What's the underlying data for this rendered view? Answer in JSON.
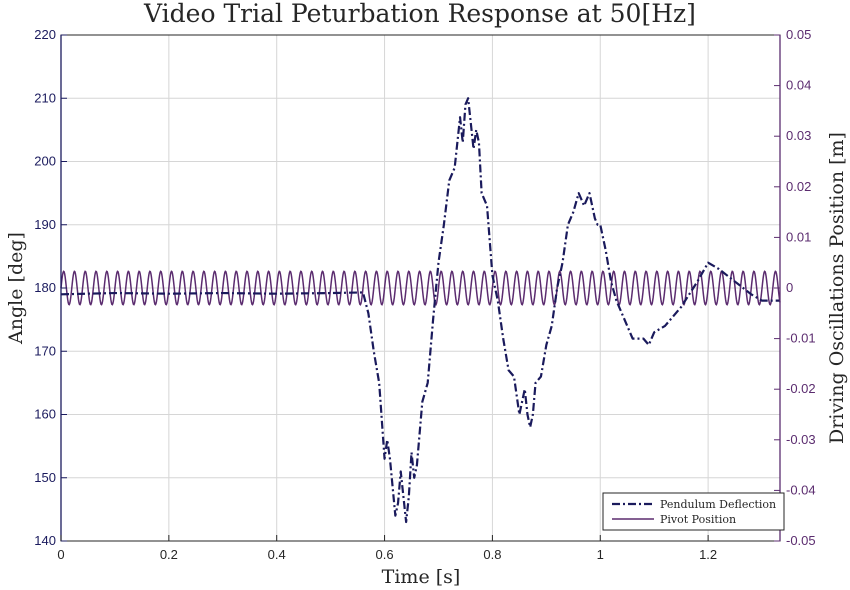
{
  "chart_data": {
    "type": "line",
    "title": "Video Trial Peturbation Response at 50[Hz]",
    "xlabel": "Time [s]",
    "ylabel": "Angle [deg]",
    "y2label": "Driving Oscillations Position [m]",
    "xlim": [
      0,
      1.3333
    ],
    "ylim": [
      140,
      220
    ],
    "y2lim": [
      -0.05,
      0.05
    ],
    "x_ticks": [
      "0",
      "0.2",
      "0.4",
      "0.6",
      "0.8",
      "1",
      "1.2"
    ],
    "x_tick_values": [
      0,
      0.2,
      0.4,
      0.6,
      0.8,
      1.0,
      1.2
    ],
    "y_ticks": [
      "140",
      "150",
      "160",
      "170",
      "180",
      "190",
      "200",
      "210",
      "220"
    ],
    "y_tick_values": [
      140,
      150,
      160,
      170,
      180,
      190,
      200,
      210,
      220
    ],
    "y2_ticks": [
      "-0.05",
      "-0.04",
      "-0.03",
      "-0.02",
      "-0.01",
      "0",
      "0.01",
      "0.02",
      "0.03",
      "0.04",
      "0.05"
    ],
    "y2_tick_values": [
      -0.05,
      -0.04,
      -0.03,
      -0.02,
      -0.01,
      0,
      0.01,
      0.02,
      0.03,
      0.04,
      0.05
    ],
    "grid": true,
    "legend_position": "bottom-right",
    "colors": {
      "pendulum": "#1a1a5c",
      "pivot": "#5b2c6f"
    },
    "series": [
      {
        "name": "Pendulum Deflection",
        "axis": "left",
        "style": "dash-dot",
        "x": [
          0,
          0.1,
          0.2,
          0.3,
          0.4,
          0.5,
          0.56,
          0.57,
          0.58,
          0.59,
          0.6,
          0.605,
          0.61,
          0.62,
          0.625,
          0.63,
          0.635,
          0.64,
          0.645,
          0.65,
          0.655,
          0.66,
          0.67,
          0.68,
          0.69,
          0.7,
          0.71,
          0.72,
          0.73,
          0.735,
          0.74,
          0.745,
          0.75,
          0.755,
          0.76,
          0.765,
          0.77,
          0.775,
          0.78,
          0.79,
          0.8,
          0.81,
          0.82,
          0.83,
          0.84,
          0.85,
          0.86,
          0.865,
          0.87,
          0.875,
          0.88,
          0.89,
          0.9,
          0.91,
          0.92,
          0.93,
          0.94,
          0.95,
          0.96,
          0.97,
          0.975,
          0.98,
          0.985,
          0.99,
          0.995,
          1.0,
          1.01,
          1.02,
          1.03,
          1.04,
          1.05,
          1.06,
          1.07,
          1.08,
          1.09,
          1.1,
          1.12,
          1.15,
          1.18,
          1.2,
          1.22,
          1.25,
          1.28,
          1.3,
          1.3333
        ],
        "values": [
          179,
          179.2,
          179.1,
          179.2,
          179.1,
          179.2,
          179.3,
          176,
          170,
          165,
          153,
          156,
          153,
          144,
          146,
          151,
          147,
          143,
          147,
          154,
          150,
          152,
          162,
          165,
          175,
          184,
          190,
          197,
          199,
          203,
          207,
          203,
          209,
          210,
          206,
          202,
          205,
          203,
          195,
          193,
          182,
          178,
          172,
          167,
          166,
          160,
          164,
          160,
          158,
          160,
          165,
          166,
          171,
          174,
          180,
          184,
          190,
          192,
          195,
          193,
          194,
          195,
          193,
          191,
          190,
          190,
          186,
          181,
          178,
          176,
          174,
          172,
          172,
          172,
          171,
          173,
          174,
          177,
          181,
          184,
          183,
          181,
          179,
          178,
          178
        ]
      },
      {
        "name": "Pivot Position",
        "axis": "right",
        "style": "solid",
        "amplitude": 0.0033,
        "frequency_hz": 50,
        "offset": 0
      }
    ]
  }
}
